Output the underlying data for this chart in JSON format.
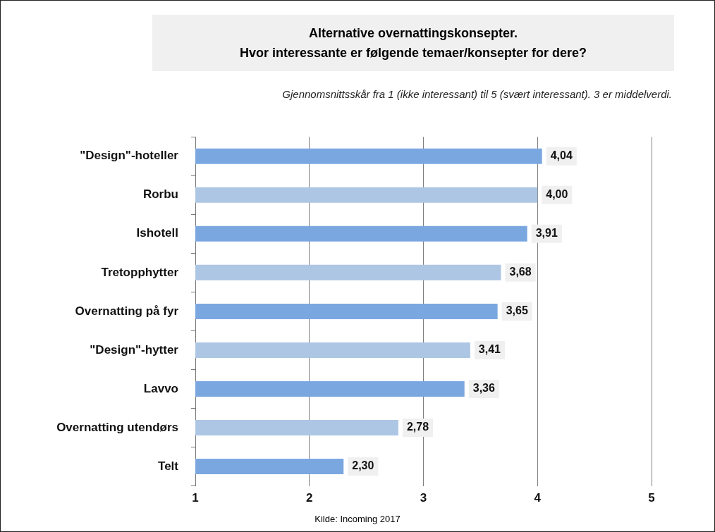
{
  "chart_data": {
    "type": "bar",
    "orientation": "horizontal",
    "title": "Alternative overnattingskonsepter.\nHvor interessante er følgende temaer/konsepter for dere?",
    "subtitle": "Gjennomsnittsskår fra 1 (ikke interessant) til 5 (svært interessant). 3 er middelverdi.",
    "categories": [
      "\"Design\"-hoteller",
      "Rorbu",
      "Ishotell",
      "Tretopphytter",
      "Overnatting på fyr",
      "\"Design\"-hytter",
      "Lavvo",
      "Overnatting utendørs",
      "Telt"
    ],
    "values": [
      4.04,
      4.0,
      3.91,
      3.68,
      3.65,
      3.41,
      3.36,
      2.78,
      2.3
    ],
    "colors": [
      "#7ba7e0",
      "#adc6e3",
      "#7ba7e0",
      "#adc6e3",
      "#7ba7e0",
      "#adc6e3",
      "#7ba7e0",
      "#adc6e3",
      "#7ba7e0"
    ],
    "value_labels": [
      "4,04",
      "4,00",
      "3,91",
      "3,68",
      "3,65",
      "3,41",
      "3,36",
      "2,78",
      "2,30"
    ],
    "xlim": [
      1,
      5
    ],
    "xticks": [
      1,
      2,
      3,
      4,
      5
    ],
    "grid": "x",
    "legend": false,
    "annotations": [
      "Kilde:  Incoming 2017"
    ]
  }
}
